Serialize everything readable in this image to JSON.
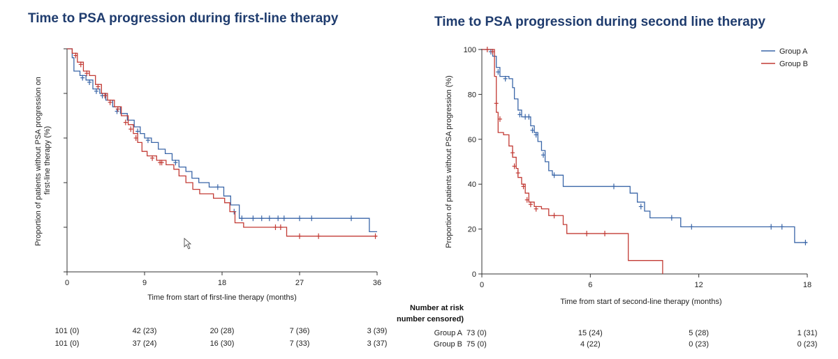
{
  "colors": {
    "group_a": "#3a66a8",
    "group_b": "#c23b35",
    "title": "#1f3c6e"
  },
  "chart_data": [
    {
      "type": "line",
      "title": "Time to PSA progression during first-line therapy",
      "xlabel": "Time from start of first-line therapy (months)",
      "ylabel": "Proportion of patients without PSA progression on first-line therapy (%)",
      "xlim": [
        0,
        36
      ],
      "ylim": [
        0,
        100
      ],
      "x_ticks": [
        "0",
        "9",
        "18",
        "27",
        "36"
      ],
      "y_ticks_labeled": false,
      "y_ticks": [
        0,
        20,
        40,
        60,
        80,
        100
      ],
      "series": [
        {
          "color_key": "group_a",
          "steps": [
            [
              0,
              100
            ],
            [
              0.6,
              96
            ],
            [
              0.8,
              90
            ],
            [
              1.5,
              88
            ],
            [
              2.2,
              86
            ],
            [
              3.0,
              82
            ],
            [
              3.8,
              80
            ],
            [
              4.5,
              77
            ],
            [
              5.3,
              74
            ],
            [
              6.2,
              71
            ],
            [
              7.0,
              68
            ],
            [
              7.8,
              65
            ],
            [
              8.5,
              62
            ],
            [
              9.0,
              60
            ],
            [
              9.8,
              58
            ],
            [
              10.6,
              55
            ],
            [
              11.4,
              53
            ],
            [
              12.2,
              50
            ],
            [
              13.0,
              47
            ],
            [
              13.8,
              45
            ],
            [
              14.5,
              42
            ],
            [
              15.3,
              40
            ],
            [
              16.5,
              38
            ],
            [
              18.2,
              34
            ],
            [
              19.0,
              30
            ],
            [
              20.0,
              24
            ],
            [
              29.0,
              24
            ],
            [
              35.0,
              24
            ],
            [
              35.1,
              18
            ],
            [
              36,
              18
            ]
          ],
          "censor": [
            [
              1.8,
              87
            ],
            [
              2.6,
              85
            ],
            [
              3.4,
              81
            ],
            [
              4.1,
              79
            ],
            [
              5.8,
              72
            ],
            [
              8.2,
              63
            ],
            [
              9.4,
              59
            ],
            [
              12.6,
              49
            ],
            [
              17.5,
              38
            ],
            [
              19.4,
              27
            ],
            [
              20.3,
              24
            ],
            [
              21.6,
              24
            ],
            [
              22.6,
              24
            ],
            [
              23.5,
              24
            ],
            [
              24.5,
              24
            ],
            [
              25.2,
              24
            ],
            [
              27.0,
              24
            ],
            [
              28.4,
              24
            ],
            [
              33.0,
              24
            ]
          ]
        },
        {
          "color_key": "group_b",
          "steps": [
            [
              0,
              100
            ],
            [
              0.6,
              98
            ],
            [
              1.2,
              94
            ],
            [
              1.9,
              90
            ],
            [
              2.6,
              88
            ],
            [
              3.3,
              84
            ],
            [
              4.0,
              80
            ],
            [
              4.7,
              77
            ],
            [
              5.5,
              74
            ],
            [
              6.3,
              70
            ],
            [
              7.1,
              66
            ],
            [
              7.7,
              62
            ],
            [
              8.2,
              58
            ],
            [
              8.7,
              54
            ],
            [
              9.3,
              52
            ],
            [
              10.4,
              50
            ],
            [
              11.5,
              48
            ],
            [
              12.4,
              46
            ],
            [
              13.0,
              43
            ],
            [
              13.8,
              40
            ],
            [
              14.6,
              37
            ],
            [
              15.4,
              35
            ],
            [
              17.0,
              33
            ],
            [
              18.3,
              31
            ],
            [
              18.9,
              27
            ],
            [
              19.5,
              22
            ],
            [
              20.5,
              20
            ],
            [
              24.0,
              20
            ],
            [
              25.0,
              20
            ],
            [
              25.5,
              16
            ],
            [
              26.6,
              16
            ],
            [
              27.0,
              16
            ],
            [
              36,
              16
            ]
          ],
          "censor": [
            [
              1.0,
              97
            ],
            [
              1.6,
              93
            ],
            [
              2.3,
              89
            ],
            [
              3.6,
              83
            ],
            [
              4.4,
              79
            ],
            [
              5.0,
              76
            ],
            [
              5.9,
              73
            ],
            [
              6.8,
              67
            ],
            [
              7.4,
              64
            ],
            [
              8.0,
              60
            ],
            [
              9.9,
              51
            ],
            [
              10.8,
              49
            ],
            [
              11.0,
              49
            ],
            [
              24.2,
              20
            ],
            [
              24.8,
              20
            ],
            [
              27.0,
              16
            ],
            [
              29.2,
              16
            ],
            [
              35.8,
              16
            ]
          ]
        }
      ],
      "at_risk": {
        "x": [
          0,
          9,
          18,
          27,
          36
        ],
        "group_a": [
          "101 (0)",
          "42 (23)",
          "20 (28)",
          "7 (36)",
          "3 (39)"
        ],
        "group_b": [
          "101 (0)",
          "37 (24)",
          "16 (30)",
          "7 (33)",
          "3 (37)"
        ]
      }
    },
    {
      "type": "line",
      "title": "Time to PSA progression during second line therapy",
      "xlabel": "Time from start of second-line therapy (months)",
      "ylabel": "Proportion of patients without PSA progression (%)",
      "xlim": [
        0,
        18
      ],
      "ylim": [
        0,
        100
      ],
      "x_ticks": [
        "0",
        "6",
        "12",
        "18"
      ],
      "y_ticks": [
        "0",
        "20",
        "40",
        "60",
        "80",
        "100"
      ],
      "legend_position": "top-right",
      "series": [
        {
          "name": "Group A",
          "color_key": "group_a",
          "steps": [
            [
              0,
              100
            ],
            [
              0.6,
              97
            ],
            [
              0.8,
              92
            ],
            [
              1.0,
              88
            ],
            [
              1.5,
              87
            ],
            [
              1.7,
              83
            ],
            [
              1.8,
              78
            ],
            [
              2.0,
              73
            ],
            [
              2.2,
              70
            ],
            [
              2.7,
              66
            ],
            [
              2.9,
              63
            ],
            [
              3.1,
              59
            ],
            [
              3.3,
              55
            ],
            [
              3.5,
              50
            ],
            [
              3.7,
              46
            ],
            [
              3.9,
              44
            ],
            [
              4.5,
              39
            ],
            [
              7.5,
              39
            ],
            [
              8.2,
              36
            ],
            [
              8.6,
              32
            ],
            [
              9.0,
              28
            ],
            [
              9.3,
              25
            ],
            [
              10.4,
              25
            ],
            [
              11.0,
              21
            ],
            [
              17.2,
              21
            ],
            [
              17.3,
              14
            ],
            [
              18,
              14
            ]
          ],
          "censor": [
            [
              0.5,
              99
            ],
            [
              0.9,
              90
            ],
            [
              1.3,
              87
            ],
            [
              2.1,
              71
            ],
            [
              2.4,
              70
            ],
            [
              2.6,
              70
            ],
            [
              2.8,
              64
            ],
            [
              3.0,
              62
            ],
            [
              3.4,
              53
            ],
            [
              4.0,
              44
            ],
            [
              7.3,
              39
            ],
            [
              8.8,
              30
            ],
            [
              10.5,
              25
            ],
            [
              11.6,
              21
            ],
            [
              16.0,
              21
            ],
            [
              16.6,
              21
            ],
            [
              17.9,
              14
            ]
          ]
        },
        {
          "name": "Group B",
          "color_key": "group_b",
          "steps": [
            [
              0,
              100
            ],
            [
              0.7,
              88
            ],
            [
              0.8,
              72
            ],
            [
              0.9,
              63
            ],
            [
              1.2,
              62
            ],
            [
              1.5,
              57
            ],
            [
              1.7,
              52
            ],
            [
              1.9,
              47
            ],
            [
              2.0,
              43
            ],
            [
              2.2,
              40
            ],
            [
              2.4,
              36
            ],
            [
              2.6,
              32
            ],
            [
              2.9,
              30
            ],
            [
              3.3,
              29
            ],
            [
              3.7,
              26
            ],
            [
              4.5,
              22
            ],
            [
              4.7,
              18
            ],
            [
              7.2,
              18
            ],
            [
              8.0,
              18
            ],
            [
              8.1,
              6
            ],
            [
              10.0,
              6
            ],
            [
              10.0,
              0
            ]
          ],
          "censor": [
            [
              0.3,
              100
            ],
            [
              0.6,
              99
            ],
            [
              0.8,
              76
            ],
            [
              1.0,
              69
            ],
            [
              1.7,
              54
            ],
            [
              1.8,
              48
            ],
            [
              2.0,
              45
            ],
            [
              2.3,
              39
            ],
            [
              2.5,
              33
            ],
            [
              2.7,
              31
            ],
            [
              3.0,
              29
            ],
            [
              4.0,
              26
            ],
            [
              5.8,
              18
            ],
            [
              6.8,
              18
            ]
          ]
        }
      ],
      "at_risk": {
        "header": [
          "Number at risk",
          "number censored)"
        ],
        "x": [
          0,
          6,
          12,
          18
        ],
        "group_a_label": "Group A",
        "group_b_label": "Group B",
        "group_a": [
          "73 (0)",
          "15 (24)",
          "5 (28)",
          "1 (31)"
        ],
        "group_b": [
          "75 (0)",
          "4 (22)",
          "0 (23)",
          "0 (23)"
        ]
      }
    }
  ]
}
